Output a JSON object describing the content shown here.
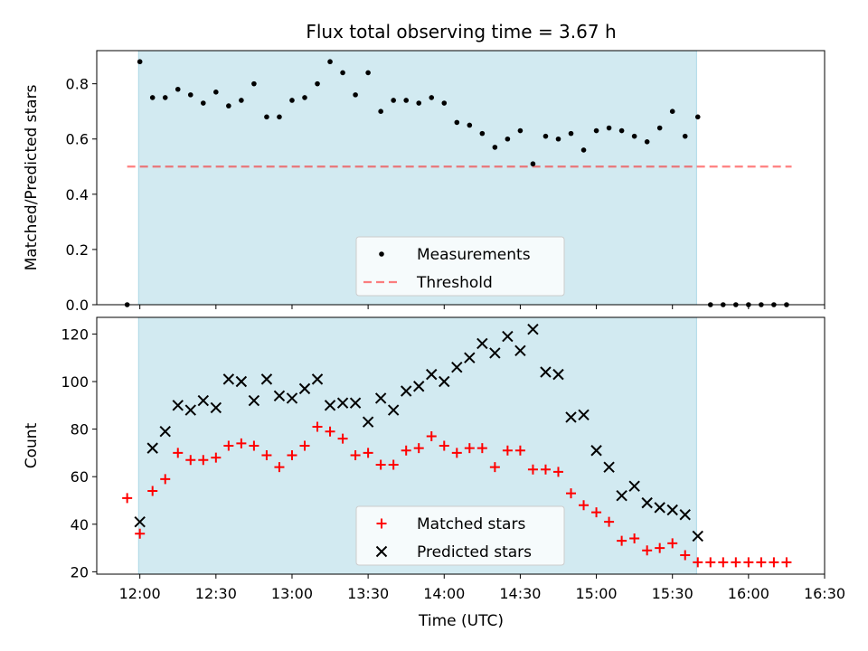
{
  "title": "Flux total observing time = 3.67 h",
  "colors": {
    "background": "#ffffff",
    "shade": "#add8e6",
    "measurement": "#000000",
    "threshold": "#ff0000",
    "matched": "#ff0000",
    "predicted": "#000000"
  },
  "chart_data": [
    {
      "type": "scatter",
      "ylabel": "Matched/Predicted stars",
      "x_unit": "minutes since 00:00 UTC",
      "xlim": [
        703,
        990
      ],
      "ylim": [
        0.0,
        0.92
      ],
      "yticks": [
        0.0,
        0.2,
        0.4,
        0.6,
        0.8
      ],
      "ytick_labels": [
        "0.0",
        "0.2",
        "0.4",
        "0.6",
        "0.8"
      ],
      "xticks": [
        720,
        750,
        780,
        810,
        840,
        870,
        900,
        930,
        960,
        990
      ],
      "shaded_interval": [
        719.5,
        939.5
      ],
      "legend": {
        "placement": "lower center",
        "entries": [
          "Measurements",
          "Threshold"
        ]
      },
      "threshold": {
        "name": "Threshold",
        "y": 0.5,
        "x": [
          715,
          977
        ],
        "style": "dashed"
      },
      "series": [
        {
          "name": "Measurements",
          "x": [
            715,
            720,
            725,
            730,
            735,
            740,
            745,
            750,
            755,
            760,
            765,
            770,
            775,
            780,
            785,
            790,
            795,
            800,
            805,
            810,
            815,
            820,
            825,
            830,
            835,
            840,
            845,
            850,
            855,
            860,
            865,
            870,
            875,
            880,
            885,
            890,
            895,
            900,
            905,
            910,
            915,
            920,
            925,
            930,
            935,
            940,
            945,
            950,
            955,
            960,
            965,
            970,
            975
          ],
          "values": [
            0.0,
            0.88,
            0.75,
            0.75,
            0.78,
            0.76,
            0.73,
            0.77,
            0.72,
            0.74,
            0.8,
            0.68,
            0.68,
            0.74,
            0.75,
            0.8,
            0.88,
            0.84,
            0.76,
            0.84,
            0.7,
            0.74,
            0.74,
            0.73,
            0.75,
            0.73,
            0.66,
            0.65,
            0.62,
            0.57,
            0.6,
            0.63,
            0.51,
            0.61,
            0.6,
            0.62,
            0.56,
            0.63,
            0.64,
            0.63,
            0.61,
            0.59,
            0.64,
            0.7,
            0.61,
            0.68,
            0.0,
            0.0,
            0.0,
            0.0,
            0.0,
            0.0,
            0.0
          ]
        }
      ]
    },
    {
      "type": "scatter",
      "ylabel": "Count",
      "xlabel": "Time (UTC)",
      "x_unit": "minutes since 00:00 UTC",
      "xlim": [
        703,
        990
      ],
      "ylim": [
        19,
        127
      ],
      "yticks": [
        20,
        40,
        60,
        80,
        100,
        120
      ],
      "ytick_labels": [
        "20",
        "40",
        "60",
        "80",
        "100",
        "120"
      ],
      "xticks": [
        720,
        750,
        780,
        810,
        840,
        870,
        900,
        930,
        960,
        990
      ],
      "xtick_labels": [
        "12:00",
        "12:30",
        "13:00",
        "13:30",
        "14:00",
        "14:30",
        "15:00",
        "15:30",
        "16:00",
        "16:30"
      ],
      "shaded_interval": [
        719.5,
        939.5
      ],
      "legend": {
        "placement": "lower center",
        "entries": [
          "Matched stars",
          "Predicted stars"
        ]
      },
      "series": [
        {
          "name": "Matched stars",
          "marker": "plus",
          "x": [
            715,
            720,
            725,
            730,
            735,
            740,
            745,
            750,
            755,
            760,
            765,
            770,
            775,
            780,
            785,
            790,
            795,
            800,
            805,
            810,
            815,
            820,
            825,
            830,
            835,
            840,
            845,
            850,
            855,
            860,
            865,
            870,
            875,
            880,
            885,
            890,
            895,
            900,
            905,
            910,
            915,
            920,
            925,
            930,
            935,
            940,
            945,
            950,
            955,
            960,
            965,
            970,
            975
          ],
          "values": [
            51,
            36,
            54,
            59,
            70,
            67,
            67,
            68,
            73,
            74,
            73,
            69,
            64,
            69,
            73,
            81,
            79,
            76,
            69,
            70,
            65,
            65,
            71,
            72,
            77,
            73,
            70,
            72,
            72,
            64,
            71,
            71,
            63,
            63,
            62,
            53,
            48,
            45,
            41,
            33,
            34,
            29,
            30,
            32,
            27,
            24,
            24,
            24,
            24,
            24,
            24,
            24,
            24
          ]
        },
        {
          "name": "Predicted stars",
          "marker": "x",
          "x": [
            720,
            725,
            730,
            735,
            740,
            745,
            750,
            755,
            760,
            765,
            770,
            775,
            780,
            785,
            790,
            795,
            800,
            805,
            810,
            815,
            820,
            825,
            830,
            835,
            840,
            845,
            850,
            855,
            860,
            865,
            870,
            875,
            880,
            885,
            890,
            895,
            900,
            905,
            910,
            915,
            920,
            925,
            930,
            935,
            940
          ],
          "values": [
            41,
            72,
            79,
            90,
            88,
            92,
            89,
            101,
            100,
            92,
            101,
            94,
            93,
            97,
            101,
            90,
            91,
            91,
            83,
            93,
            88,
            96,
            98,
            103,
            100,
            106,
            110,
            116,
            112,
            119,
            113,
            122,
            104,
            103,
            85,
            86,
            71,
            64,
            52,
            56,
            49,
            47,
            46,
            44,
            35
          ]
        }
      ]
    }
  ]
}
